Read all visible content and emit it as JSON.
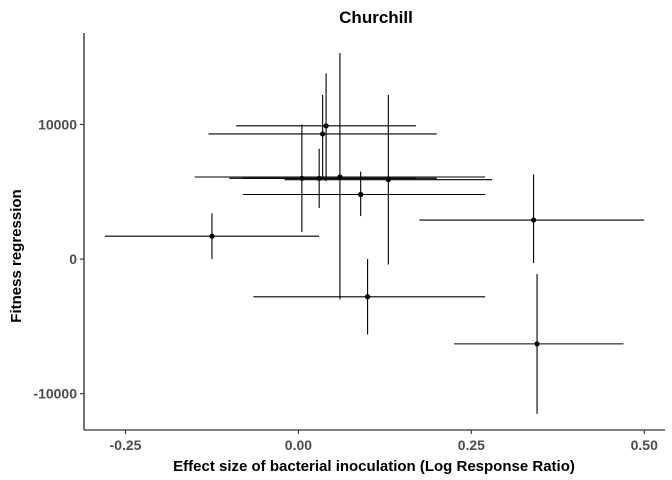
{
  "chart_data": {
    "type": "scatter",
    "title": "Churchill",
    "xlabel": "Effect size of bacterial inoculation (Log Response Ratio)",
    "ylabel": "Fitness regression",
    "xlim": [
      -0.31,
      0.53
    ],
    "ylim": [
      -12700,
      16800
    ],
    "x_ticks": [
      -0.25,
      0.0,
      0.25,
      0.5
    ],
    "x_tick_labels": [
      "-0.25",
      "0.00",
      "0.25",
      "0.50"
    ],
    "y_ticks": [
      -10000,
      0,
      10000
    ],
    "y_tick_labels": [
      "-10000",
      "0",
      "10000"
    ],
    "grid": false,
    "legend": "none",
    "points": [
      {
        "x": -0.125,
        "y": 1700,
        "xmin": -0.28,
        "xmax": 0.03,
        "ymin": 0,
        "ymax": 3400
      },
      {
        "x": 0.005,
        "y": 6000,
        "xmin": -0.1,
        "xmax": 0.2,
        "ymin": 2000,
        "ymax": 10000
      },
      {
        "x": 0.03,
        "y": 6000,
        "xmin": -0.08,
        "xmax": 0.17,
        "ymin": 3800,
        "ymax": 8200
      },
      {
        "x": 0.035,
        "y": 9300,
        "xmin": -0.13,
        "xmax": 0.2,
        "ymin": 6000,
        "ymax": 12200
      },
      {
        "x": 0.04,
        "y": 9900,
        "xmin": -0.09,
        "xmax": 0.17,
        "ymin": 5800,
        "ymax": 13800
      },
      {
        "x": 0.06,
        "y": 6100,
        "xmin": -0.15,
        "xmax": 0.27,
        "ymin": -3000,
        "ymax": 15300
      },
      {
        "x": 0.09,
        "y": 4800,
        "xmin": -0.08,
        "xmax": 0.27,
        "ymin": 3200,
        "ymax": 6500
      },
      {
        "x": 0.13,
        "y": 5900,
        "xmin": -0.02,
        "xmax": 0.28,
        "ymin": -400,
        "ymax": 12200
      },
      {
        "x": 0.1,
        "y": -2800,
        "xmin": -0.065,
        "xmax": 0.27,
        "ymin": -5600,
        "ymax": 0
      },
      {
        "x": 0.34,
        "y": 2900,
        "xmin": 0.175,
        "xmax": 0.5,
        "ymin": -300,
        "ymax": 6300
      },
      {
        "x": 0.345,
        "y": -6300,
        "xmin": 0.225,
        "xmax": 0.47,
        "ymin": -11500,
        "ymax": -1100
      }
    ]
  }
}
